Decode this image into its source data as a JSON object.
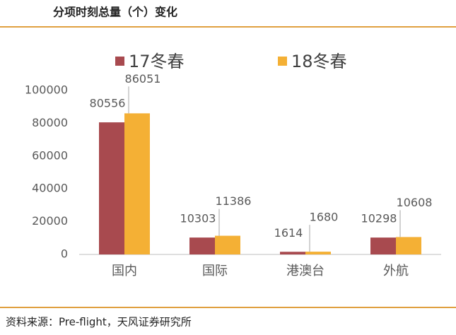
{
  "header": {
    "title": "分项时刻总量（个）变化"
  },
  "chart_data": {
    "type": "bar",
    "categories": [
      "国内",
      "国际",
      "港澳台",
      "外航"
    ],
    "series": [
      {
        "name": "17冬春",
        "color": "#a84a4f",
        "values": [
          80556,
          10303,
          1614,
          10298
        ]
      },
      {
        "name": "18冬春",
        "color": "#f4b035",
        "values": [
          86051,
          11386,
          1680,
          10608
        ]
      }
    ],
    "ylim": [
      0,
      100000
    ],
    "yticks": [
      0,
      20000,
      40000,
      60000,
      80000,
      100000
    ],
    "grid": false
  },
  "footer": {
    "source": "资料来源：Pre-flight，天风证券研究所"
  }
}
